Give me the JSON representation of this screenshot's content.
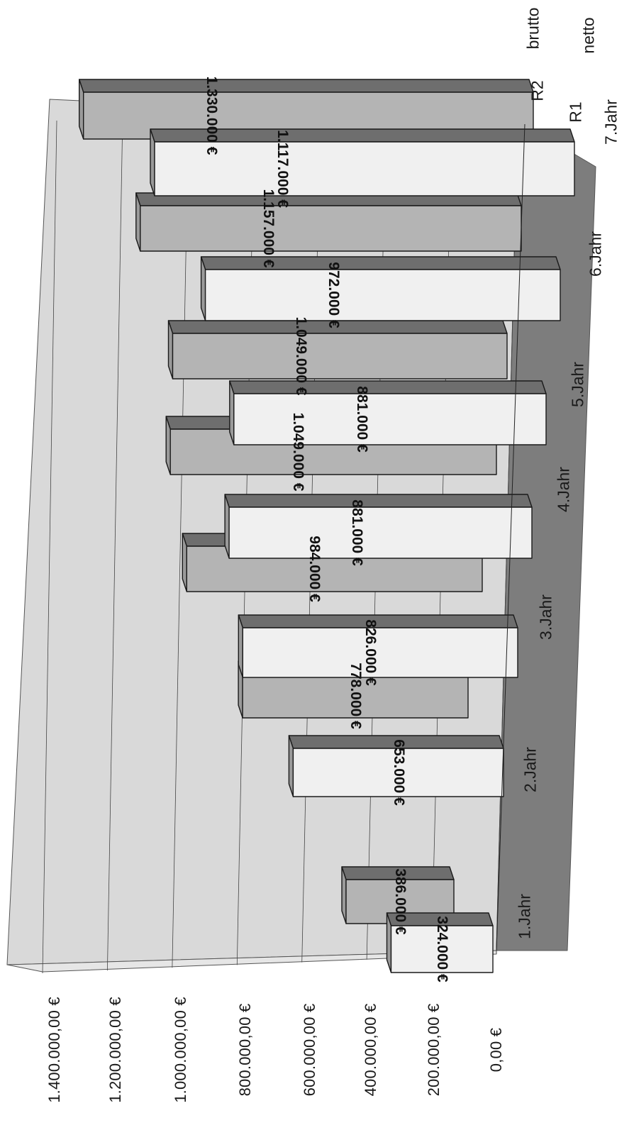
{
  "chart_data": {
    "type": "bar",
    "title": "",
    "xlabel": "",
    "ylabel": "",
    "categories": [
      "1.Jahr",
      "2.Jahr",
      "3.Jahr",
      "4.Jahr",
      "5.Jahr",
      "6.Jahr",
      "7.Jahr"
    ],
    "series": [
      {
        "name": "brutto",
        "row_label": "R2",
        "values": [
          386000,
          778000,
          984000,
          1049000,
          1049000,
          1157000,
          1330000
        ],
        "labels": [
          "386.000 €",
          "778.000 €",
          "984.000 €",
          "1.049.000 €",
          "1.049.000 €",
          "1.157.000 €",
          "1.330.000 €"
        ],
        "color": "#b4b4b4"
      },
      {
        "name": "netto",
        "row_label": "R1",
        "values": [
          324000,
          653000,
          826000,
          881000,
          881000,
          972000,
          1117000
        ],
        "labels": [
          "324.000 €",
          "653.000 €",
          "826.000 €",
          "881.000 €",
          "881.000 €",
          "972.000 €",
          "1.117.000 €"
        ],
        "color": "#f0f0f0"
      }
    ],
    "ylim": [
      0,
      1400000
    ],
    "y_ticks": [
      "0,00 €",
      "200.000,00 €",
      "400.000,00 €",
      "600.000,00 €",
      "800.000,00 €",
      "1.000.000,00 €",
      "1.200.000,00 €",
      "1.400.000,00 €"
    ],
    "grid": true,
    "legend_position": "top-right",
    "orientation": "rotated 90° counter-clockwise, 3D clustered columns",
    "colors": {
      "wall": "#d9d9d9",
      "floor": "#7d7d7d",
      "bar_top": "#6e6e6e",
      "bar_side": "#9a9a9a"
    }
  }
}
